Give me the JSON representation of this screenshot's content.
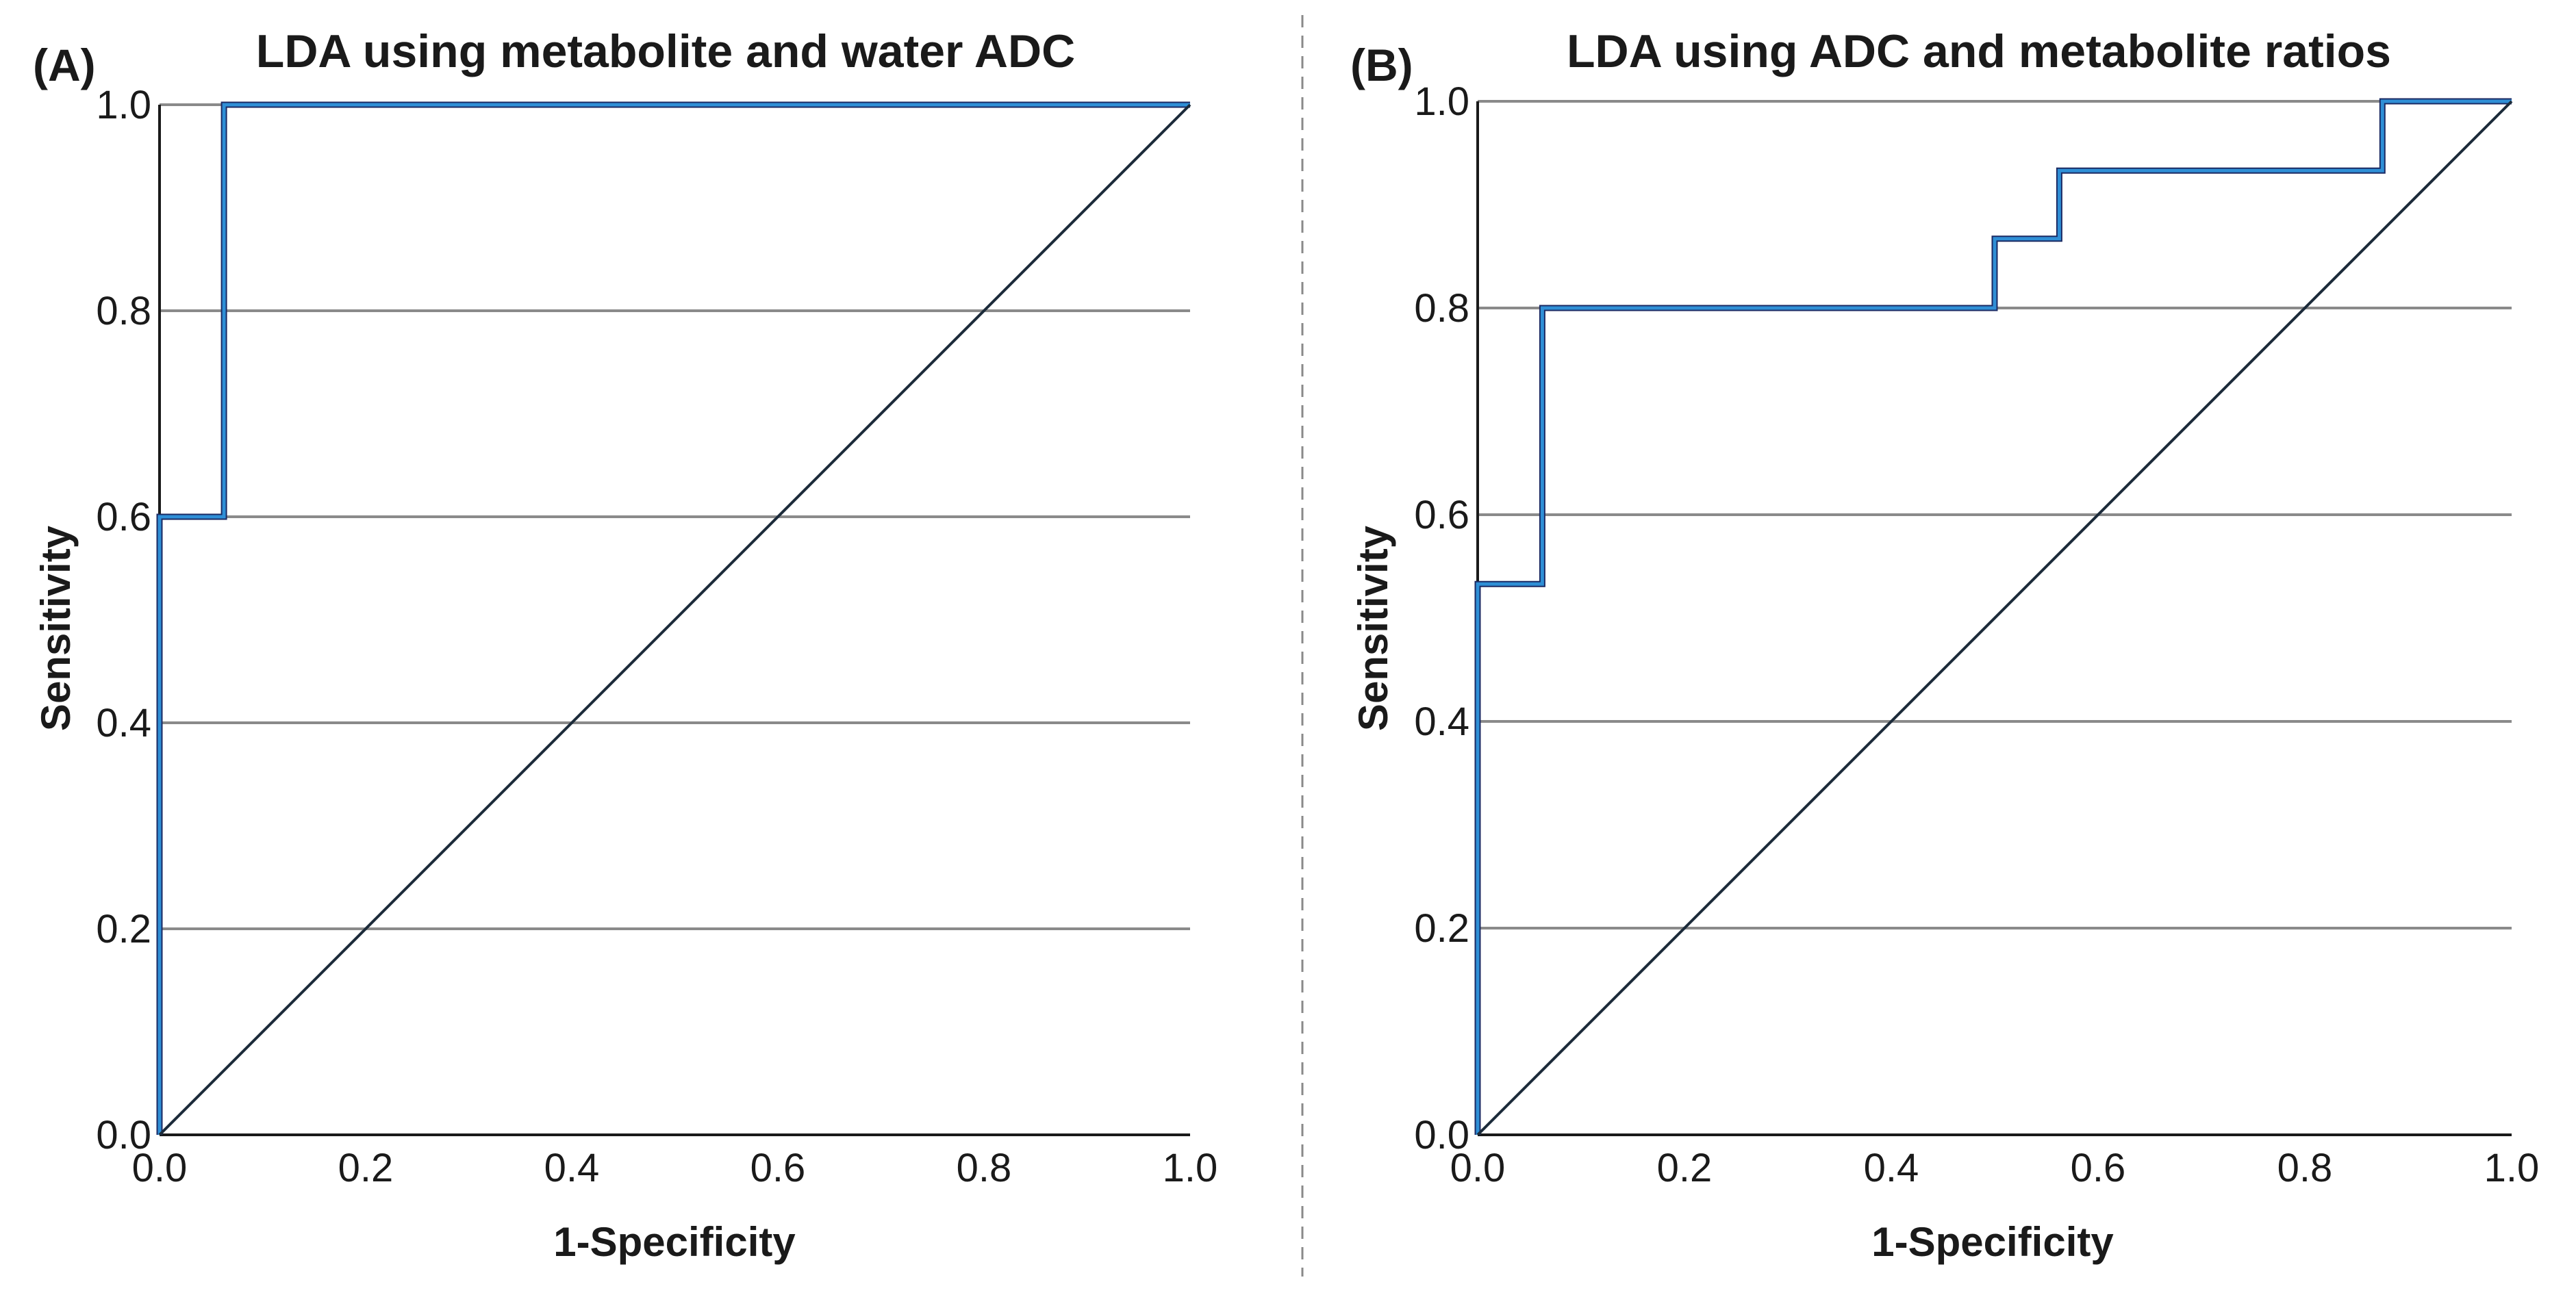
{
  "colors": {
    "roc_curve": "#2f8fd6",
    "roc_curve_dark": "#1b2a63",
    "reference_line": "#1c2b3a",
    "gridline": "#8a8a8a",
    "text": "#1a1a1a"
  },
  "chart_data": [
    {
      "type": "line",
      "panel_tag": "(A)",
      "title": "LDA using metabolite and water ADC",
      "xlabel": "1-Specificity",
      "ylabel": "Sensitivity",
      "xlim": [
        0,
        1
      ],
      "ylim": [
        0,
        1
      ],
      "xticks": [
        "0.0",
        "0.2",
        "0.4",
        "0.6",
        "0.8",
        "1.0"
      ],
      "yticks": [
        "0.0",
        "0.2",
        "0.4",
        "0.6",
        "0.8",
        "1.0"
      ],
      "grid": "horizontal",
      "series": [
        {
          "name": "ROC curve",
          "x": [
            0.0,
            0.0,
            0.0625,
            0.0625,
            1.0
          ],
          "y": [
            0.0,
            0.6,
            0.6,
            1.0,
            1.0
          ]
        },
        {
          "name": "Reference line",
          "x": [
            0.0,
            1.0
          ],
          "y": [
            0.0,
            1.0
          ]
        }
      ]
    },
    {
      "type": "line",
      "panel_tag": "(B)",
      "title": "LDA using ADC and metabolite ratios",
      "xlabel": "1-Specificity",
      "ylabel": "Sensitivity",
      "xlim": [
        0,
        1
      ],
      "ylim": [
        0,
        1
      ],
      "xticks": [
        "0.0",
        "0.2",
        "0.4",
        "0.6",
        "0.8",
        "1.0"
      ],
      "yticks": [
        "0.0",
        "0.2",
        "0.4",
        "0.6",
        "0.8",
        "1.0"
      ],
      "grid": "horizontal",
      "series": [
        {
          "name": "ROC curve",
          "x": [
            0.0,
            0.0,
            0.0625,
            0.0625,
            0.5,
            0.5,
            0.5625,
            0.5625,
            0.875,
            0.875,
            1.0
          ],
          "y": [
            0.0,
            0.533,
            0.533,
            0.8,
            0.8,
            0.867,
            0.867,
            0.933,
            0.933,
            1.0,
            1.0
          ]
        },
        {
          "name": "Reference line",
          "x": [
            0.0,
            1.0
          ],
          "y": [
            0.0,
            1.0
          ]
        }
      ]
    }
  ]
}
